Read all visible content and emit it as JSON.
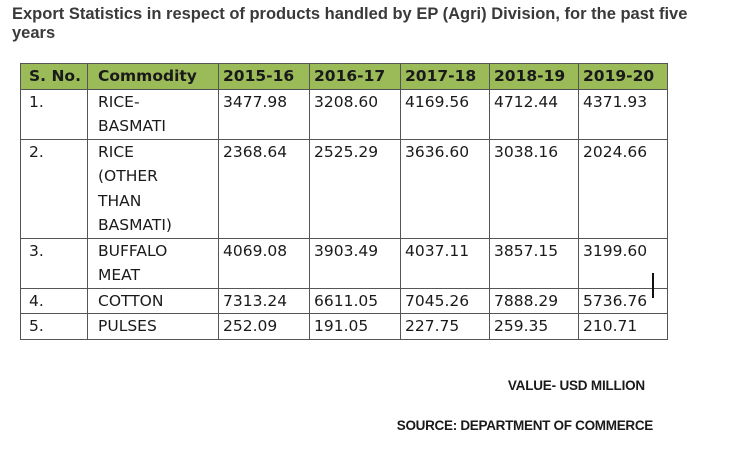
{
  "heading": "Export Statistics in respect of products handled by EP (Agri) Division, for the past five years",
  "table": {
    "header_color": "#9bbb59",
    "columns": [
      "S. No.",
      "Commodity",
      "2015-16",
      "2016-17",
      "2017-18",
      "2018-19",
      "2019-20"
    ],
    "rows": [
      {
        "sno": "1.",
        "commodity": [
          "RICE-",
          "BASMATI"
        ],
        "values": [
          "3477.98",
          "3208.60",
          "4169.56",
          "4712.44",
          "4371.93"
        ]
      },
      {
        "sno": "2.",
        "commodity": [
          "RICE",
          "(OTHER",
          "THAN",
          "BASMATI)"
        ],
        "values": [
          "2368.64",
          "2525.29",
          "3636.60",
          "3038.16",
          "2024.66"
        ]
      },
      {
        "sno": "3.",
        "commodity": [
          "BUFFALO",
          "MEAT"
        ],
        "values": [
          "4069.08",
          "3903.49",
          "4037.11",
          "3857.15",
          "3199.60"
        ]
      },
      {
        "sno": "4.",
        "commodity": [
          "COTTON"
        ],
        "values": [
          "7313.24",
          "6611.05",
          "7045.26",
          "7888.29",
          "5736.76"
        ]
      },
      {
        "sno": "5.",
        "commodity": [
          "PULSES"
        ],
        "values": [
          "252.09",
          "191.05",
          "227.75",
          "259.35",
          "210.71"
        ]
      }
    ]
  },
  "value_note": "VALUE- USD MILLION",
  "source_note": "SOURCE: DEPARTMENT OF COMMERCE"
}
